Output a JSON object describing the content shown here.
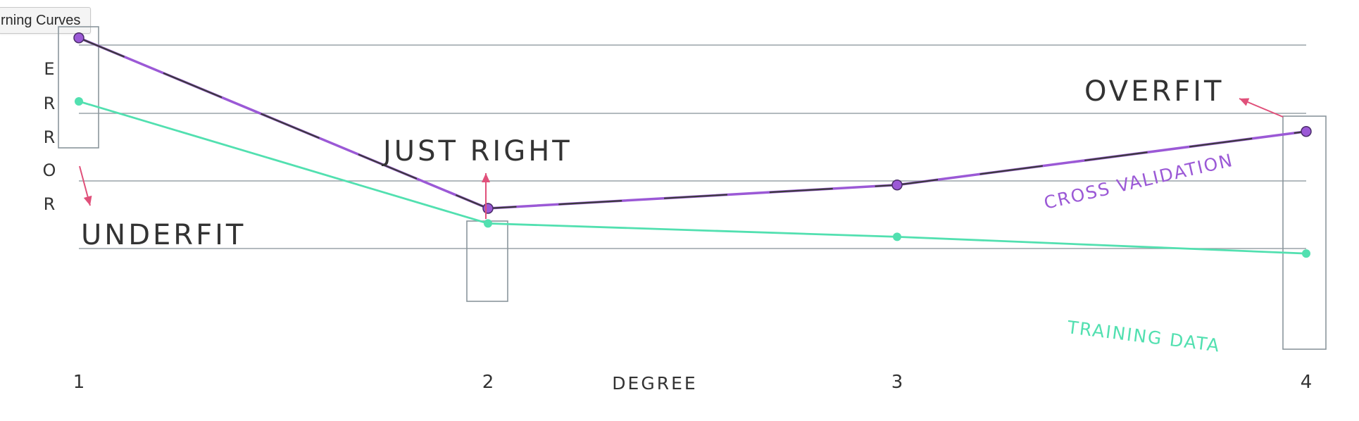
{
  "window": {
    "tooltip_title": "rning Curves"
  },
  "colors": {
    "cross_validation": "#9b59d6",
    "training": "#52e0b0",
    "annotation_arrow": "#e0507a",
    "grid": "#9aa3a8",
    "box": "#8a969c",
    "text": "#333333",
    "overlay_dark": "#3a3a3a"
  },
  "chart_data": {
    "type": "line",
    "x": [
      1,
      2,
      3,
      4
    ],
    "xlabel": "DEGREE",
    "ylabel_letters": [
      "E",
      "R",
      "R",
      "O",
      "R"
    ],
    "x_tick_labels": [
      "1",
      "2",
      "3",
      "4"
    ],
    "grid": true,
    "series": [
      {
        "name": "CROSS VALIDATION",
        "values": [
          6.3,
          1.2,
          1.9,
          3.5
        ]
      },
      {
        "name": "TRAINING DATA",
        "values": [
          4.4,
          0.75,
          0.35,
          -0.15
        ]
      }
    ],
    "annotations": [
      {
        "text": "UNDERFIT",
        "x": 1
      },
      {
        "text": "JUST RIGHT",
        "x": 2
      },
      {
        "text": "OVERFIT",
        "x": 4
      }
    ]
  }
}
